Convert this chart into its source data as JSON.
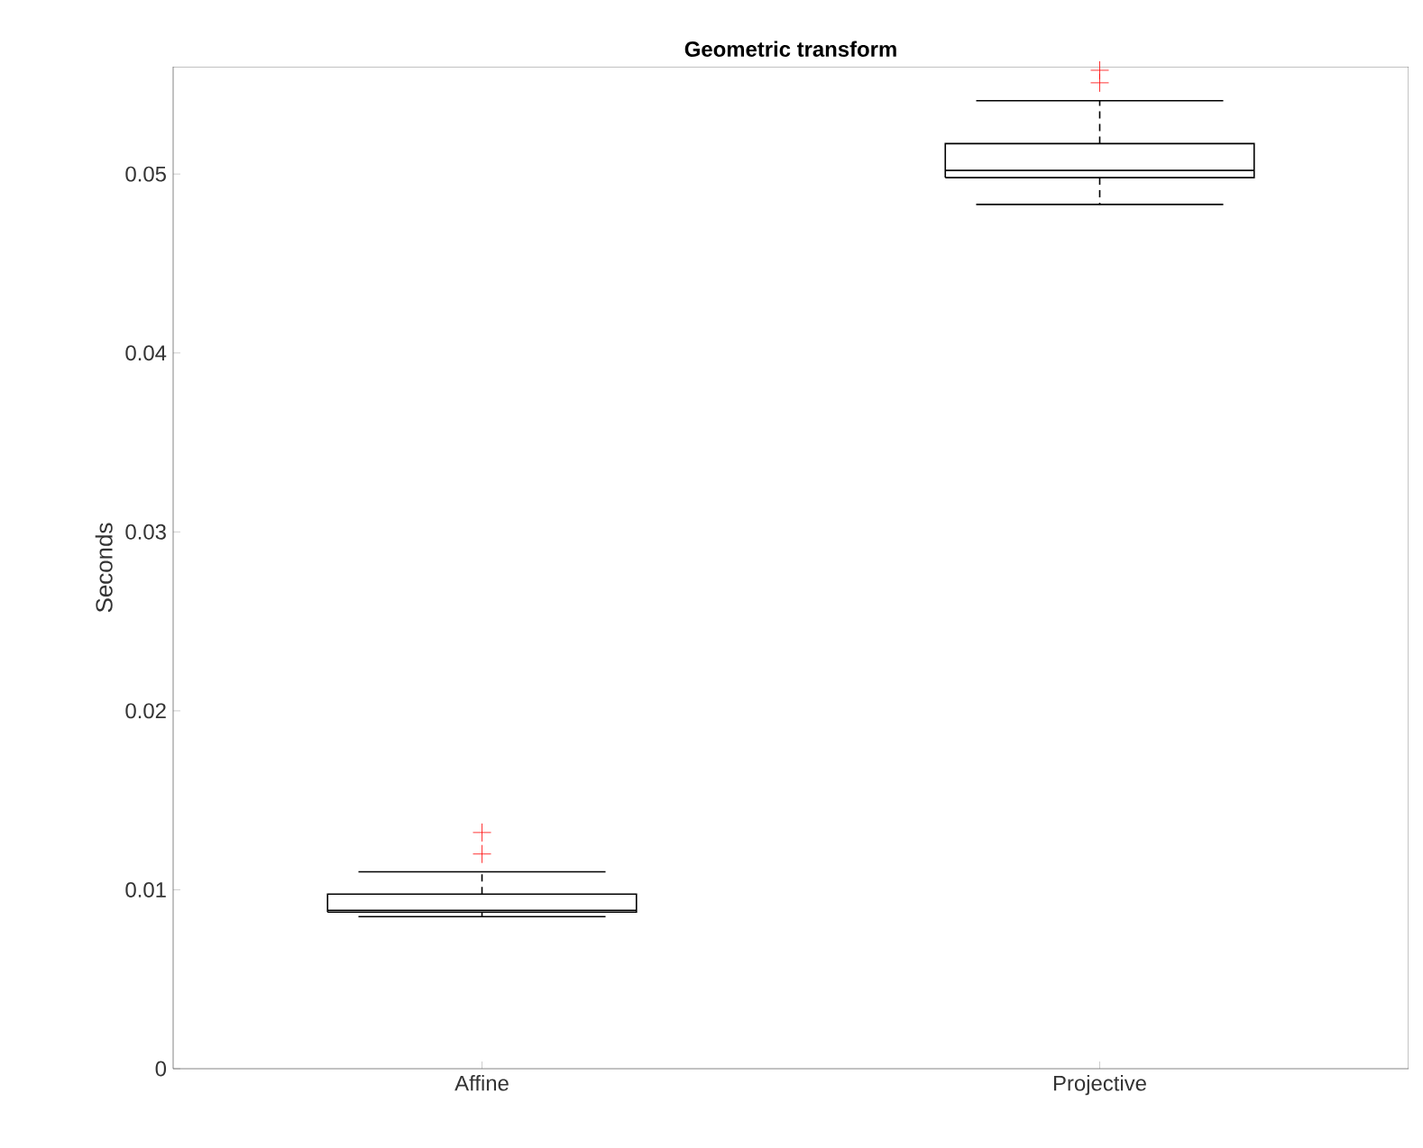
{
  "chart_data": {
    "type": "box",
    "title": "Geometric transform",
    "ylabel": "Seconds",
    "categories": [
      "Affine",
      "Projective"
    ],
    "boxes": [
      {
        "low": 0.0085,
        "q1": 0.00875,
        "median": 0.00885,
        "q3": 0.00976,
        "high": 0.011,
        "outliers": [
          0.012,
          0.0132
        ]
      },
      {
        "low": 0.0483,
        "q1": 0.0498,
        "median": 0.0502,
        "q3": 0.0517,
        "high": 0.0541,
        "outliers": [
          0.0551,
          0.0558
        ]
      }
    ],
    "color": "#000000",
    "ylim": [
      0,
      0.056
    ],
    "yticks": [
      0,
      0.01,
      0.02,
      0.03,
      0.04,
      0.05
    ],
    "grid": false,
    "marker": "cross"
  }
}
